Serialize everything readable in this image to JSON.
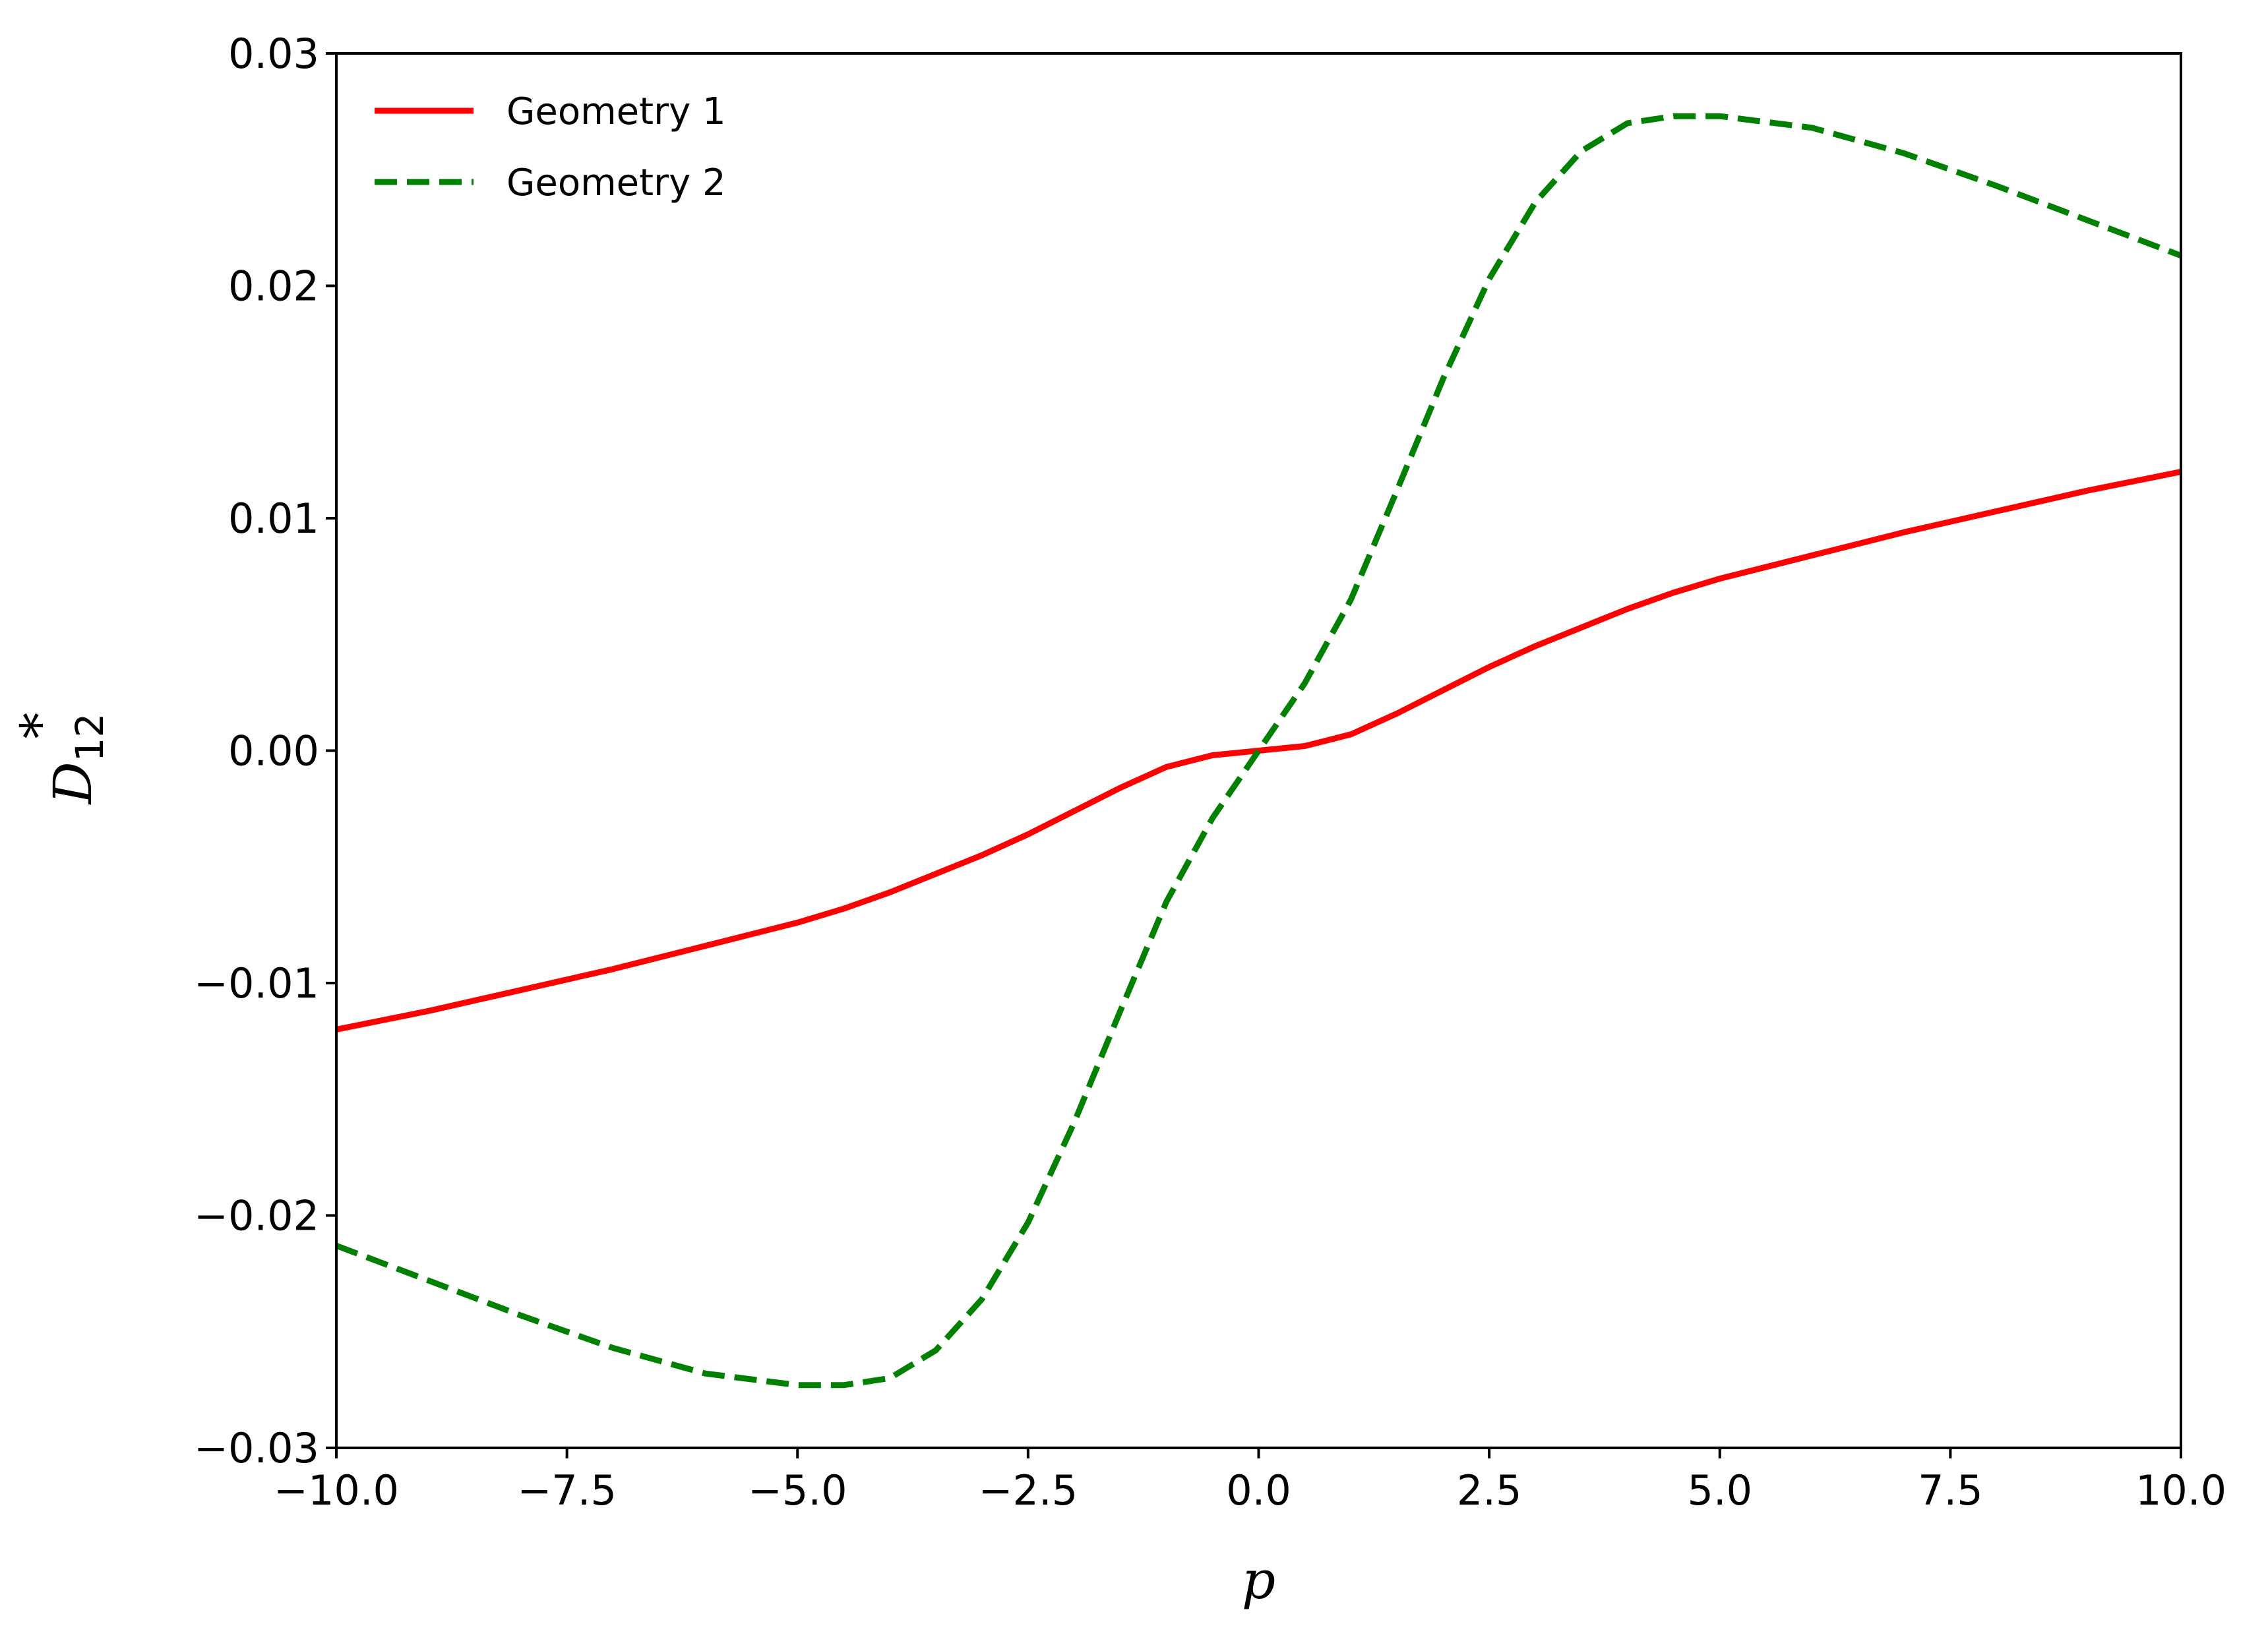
{
  "chart_data": {
    "type": "line",
    "xlabel": "p",
    "ylabel": {
      "base": "D",
      "superscript": "*",
      "subscript": "12"
    },
    "xlim": [
      -10.0,
      10.0
    ],
    "ylim": [
      -0.03,
      0.03
    ],
    "xticks": [
      -10.0,
      -7.5,
      -5.0,
      -2.5,
      0.0,
      2.5,
      5.0,
      7.5,
      10.0
    ],
    "xtick_labels": [
      "−10.0",
      "−7.5",
      "−5.0",
      "−2.5",
      "0.0",
      "2.5",
      "5.0",
      "7.5",
      "10.0"
    ],
    "yticks": [
      -0.03,
      -0.02,
      -0.01,
      0.0,
      0.01,
      0.02,
      0.03
    ],
    "ytick_labels": [
      "−0.03",
      "−0.02",
      "−0.01",
      "0.00",
      "0.01",
      "0.02",
      "0.03"
    ],
    "grid": false,
    "legend_position": "top-left",
    "x": [
      -10.0,
      -9.0,
      -8.0,
      -7.0,
      -6.0,
      -5.0,
      -4.5,
      -4.0,
      -3.5,
      -3.0,
      -2.5,
      -2.0,
      -1.5,
      -1.0,
      -0.5,
      0.0,
      0.5,
      1.0,
      1.5,
      2.0,
      2.5,
      3.0,
      3.5,
      4.0,
      4.5,
      5.0,
      6.0,
      7.0,
      8.0,
      9.0,
      10.0
    ],
    "series": [
      {
        "name": "Geometry 1",
        "color": "#ff0000",
        "style": "solid",
        "values": [
          -0.012,
          -0.0112,
          -0.0103,
          -0.0094,
          -0.0084,
          -0.0074,
          -0.0068,
          -0.0061,
          -0.0053,
          -0.0045,
          -0.0036,
          -0.0026,
          -0.0016,
          -0.0007,
          -0.0002,
          0.0,
          0.0002,
          0.0007,
          0.0016,
          0.0026,
          0.0036,
          0.0045,
          0.0053,
          0.0061,
          0.0068,
          0.0074,
          0.0084,
          0.0094,
          0.0103,
          0.0112,
          0.012
        ]
      },
      {
        "name": "Geometry 2",
        "color": "#008000",
        "style": "dashed",
        "values": [
          -0.0213,
          -0.0228,
          -0.0243,
          -0.0257,
          -0.0268,
          -0.0273,
          -0.0273,
          -0.027,
          -0.0258,
          -0.0236,
          -0.0203,
          -0.016,
          -0.0112,
          -0.0065,
          -0.0029,
          0.0,
          0.0029,
          0.0065,
          0.0112,
          0.016,
          0.0203,
          0.0236,
          0.0258,
          0.027,
          0.0273,
          0.0273,
          0.0268,
          0.0257,
          0.0243,
          0.0228,
          0.0213
        ]
      }
    ]
  }
}
